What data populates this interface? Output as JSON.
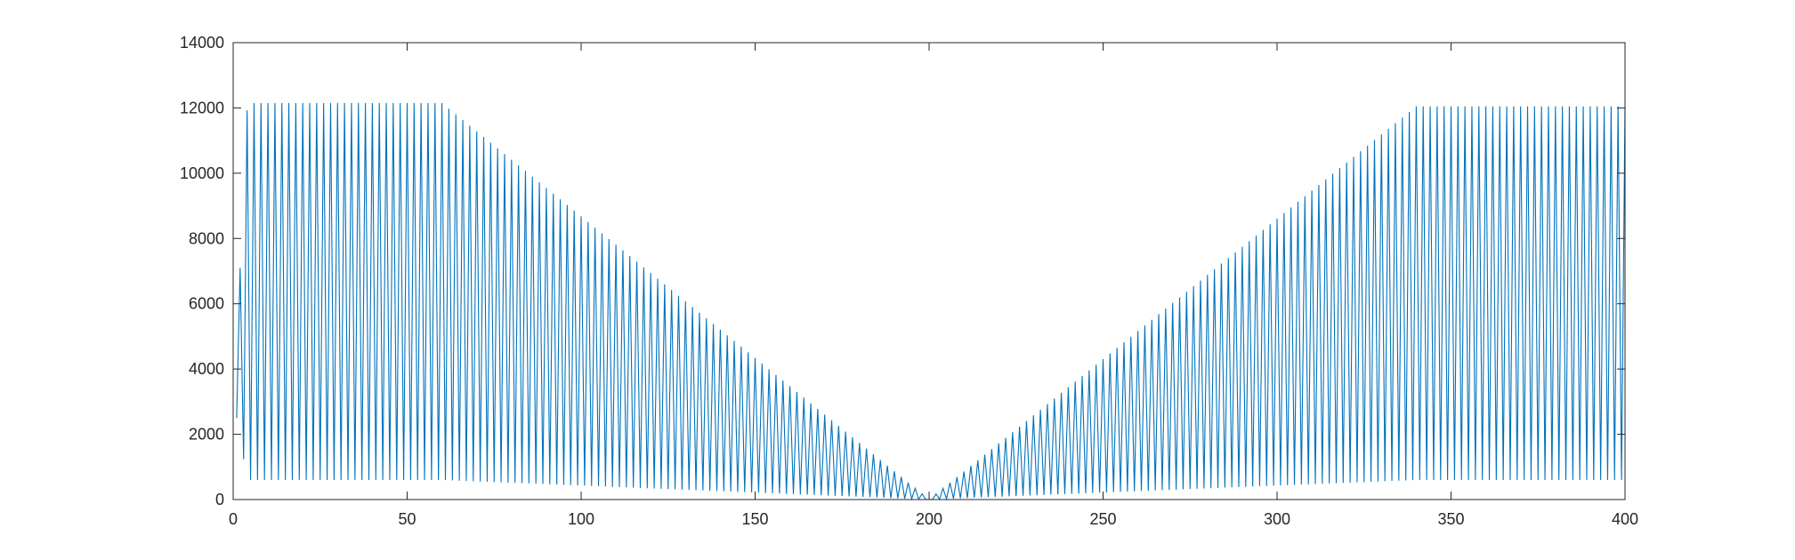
{
  "chart_data": {
    "type": "line",
    "title": "",
    "xlabel": "",
    "ylabel": "",
    "xlim": [
      0,
      400
    ],
    "ylim": [
      0,
      14000
    ],
    "xticks": [
      0,
      50,
      100,
      150,
      200,
      250,
      300,
      350,
      400
    ],
    "yticks": [
      0,
      2000,
      4000,
      6000,
      8000,
      10000,
      12000,
      14000
    ],
    "grid": false,
    "legend": "none",
    "box": true,
    "series": [
      {
        "color": "#0072BD",
        "description_of_pattern": "Rapidly oscillating signal with period of about 2 samples",
        "x_start": 1,
        "x_end": 400,
        "peak_envelope": [
          {
            "x": 1,
            "y": 2500
          },
          {
            "x": 3,
            "y": 11700
          },
          {
            "x": 5,
            "y": 12150
          },
          {
            "x": 60,
            "y": 12150
          },
          {
            "x": 200,
            "y": 0
          },
          {
            "x": 340,
            "y": 12050
          },
          {
            "x": 400,
            "y": 12050
          }
        ],
        "trough_envelope": [
          {
            "x": 1,
            "y": 2500
          },
          {
            "x": 4,
            "y": 600
          },
          {
            "x": 60,
            "y": 600
          },
          {
            "x": 200,
            "y": 0
          },
          {
            "x": 340,
            "y": 600
          },
          {
            "x": 400,
            "y": 600
          }
        ]
      }
    ]
  }
}
